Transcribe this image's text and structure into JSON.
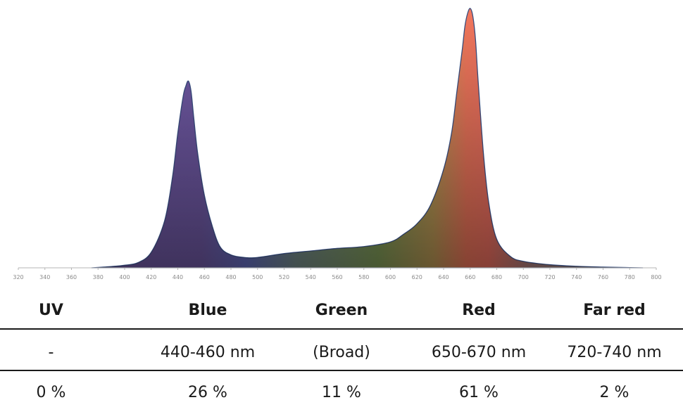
{
  "chart_data": {
    "type": "area",
    "xlim": [
      320,
      800
    ],
    "x_ticks": [
      "320",
      "340",
      "360",
      "380",
      "400",
      "420",
      "440",
      "460",
      "480",
      "500",
      "520",
      "540",
      "560",
      "580",
      "600",
      "620",
      "640",
      "660",
      "680",
      "700",
      "720",
      "740",
      "760",
      "780",
      "800"
    ],
    "peaks": [
      {
        "band": "Blue",
        "wavelength": 448,
        "relative_intensity": 0.72
      },
      {
        "band": "Red",
        "wavelength": 660,
        "relative_intensity": 1.0
      }
    ],
    "x": [
      375,
      390,
      400,
      410,
      420,
      430,
      436,
      440,
      444,
      446,
      448,
      450,
      452,
      455,
      460,
      466,
      472,
      480,
      490,
      500,
      520,
      540,
      560,
      580,
      600,
      610,
      620,
      630,
      640,
      646,
      650,
      654,
      656,
      658,
      660,
      662,
      664,
      666,
      670,
      674,
      680,
      690,
      700,
      720,
      740,
      760,
      780,
      790
    ],
    "y": [
      0.0,
      0.005,
      0.01,
      0.02,
      0.06,
      0.18,
      0.35,
      0.52,
      0.66,
      0.7,
      0.72,
      0.68,
      0.58,
      0.44,
      0.28,
      0.16,
      0.08,
      0.05,
      0.04,
      0.04,
      0.055,
      0.065,
      0.075,
      0.082,
      0.1,
      0.13,
      0.17,
      0.24,
      0.38,
      0.52,
      0.68,
      0.84,
      0.93,
      0.98,
      1.0,
      0.97,
      0.88,
      0.72,
      0.44,
      0.25,
      0.11,
      0.045,
      0.025,
      0.012,
      0.006,
      0.003,
      0.001,
      0.0
    ]
  },
  "table": {
    "headers": [
      "UV",
      "Blue",
      "Green",
      "Red",
      "Far red"
    ],
    "ranges": [
      "-",
      "440-460 nm",
      "(Broad)",
      "650-670 nm",
      "720-740 nm"
    ],
    "shares": [
      "0 %",
      "26 %",
      "11 %",
      "61 %",
      "2 %"
    ]
  }
}
